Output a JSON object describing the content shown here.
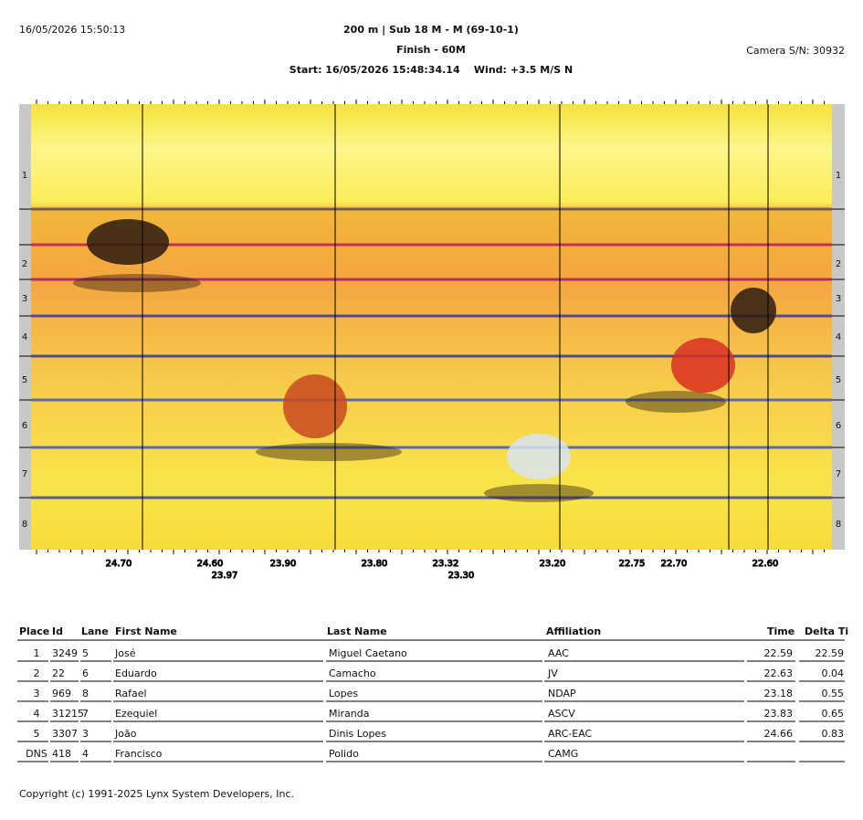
{
  "header": {
    "timestamp": "16/05/2026 15:50:13",
    "title": "200 m | Sub 18 M - M (69-10-1)",
    "subtitle": "Finish - 60M",
    "start": "Start: 16/05/2026 15:48:34.14    Wind: +3.5 M/S N",
    "camera": "Camera S/N: 30932"
  },
  "photo": {
    "lanes": [
      "1",
      "2",
      "3",
      "4",
      "5",
      "6",
      "7",
      "8"
    ],
    "time_labels": [
      "24.70",
      "24.60",
      "23.97",
      "23.90",
      "23.80",
      "23.32",
      "23.30",
      "23.20",
      "22.75",
      "22.70",
      "22.60"
    ]
  },
  "table": {
    "columns": [
      "Place",
      "Id",
      "Lane",
      "First Name",
      "Last Name",
      "Affiliation",
      "Time",
      "Delta Ti"
    ],
    "rows": [
      [
        "1",
        "3249",
        "5",
        "José",
        "Miguel Caetano",
        "AAC",
        "22.59",
        "22.59"
      ],
      [
        "2",
        "22",
        "6",
        "Eduardo",
        "Camacho",
        "JV",
        "22.63",
        "0.04"
      ],
      [
        "3",
        "969",
        "8",
        "Rafael",
        "Lopes",
        "NDAP",
        "23.18",
        "0.55"
      ],
      [
        "4",
        "31215",
        "7",
        "Ezequiel",
        "Miranda",
        "ASCV",
        "23.83",
        "0.65"
      ],
      [
        "5",
        "3307",
        "3",
        "João",
        "Dinis Lopes",
        "ARC-EAC",
        "24.66",
        "0.83"
      ],
      [
        "DNS",
        "418",
        "4",
        "Francisco",
        "Polido",
        "CAMG"
      ]
    ]
  },
  "footer": {
    "copyright": "Copyright (c) 1991-2025 Lynx System Developers, Inc."
  }
}
